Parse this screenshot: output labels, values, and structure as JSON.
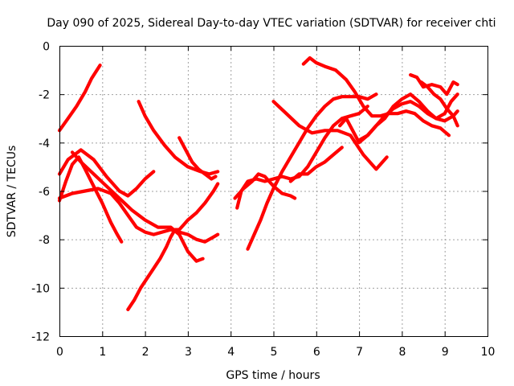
{
  "chart_data": {
    "type": "scatter",
    "title": "Day 090 of 2025, Sidereal Day-to-day VTEC variation (SDTVAR) for receiver chti",
    "xlabel": "GPS time / hours",
    "ylabel": "SDTVAR / TECUs",
    "xlim": [
      0,
      10
    ],
    "ylim": [
      -12,
      0
    ],
    "xticks": [
      "0",
      "1",
      "2",
      "3",
      "4",
      "5",
      "6",
      "7",
      "8",
      "9",
      "10"
    ],
    "yticks": [
      "0",
      "-2",
      "-4",
      "-6",
      "-8",
      "-10",
      "-12"
    ],
    "grid": true,
    "marker": "plus",
    "color": "#ff0000",
    "series": [
      {
        "x": [
          0.0,
          0.2,
          0.4,
          0.6,
          0.75,
          0.95
        ],
        "y": [
          -3.5,
          -3.0,
          -2.5,
          -1.9,
          -1.35,
          -0.8
        ]
      },
      {
        "x": [
          0.0,
          0.15,
          0.3,
          0.45,
          0.6,
          0.8,
          1.0,
          1.2,
          1.35,
          1.45
        ],
        "y": [
          -6.4,
          -5.6,
          -4.9,
          -4.6,
          -5.1,
          -5.8,
          -6.5,
          -7.3,
          -7.8,
          -8.1
        ]
      },
      {
        "x": [
          0.0,
          0.2,
          0.5,
          0.8,
          1.1,
          1.4,
          1.6,
          1.8,
          2.0,
          2.2
        ],
        "y": [
          -5.3,
          -4.7,
          -4.3,
          -4.7,
          -5.4,
          -6.0,
          -6.2,
          -5.9,
          -5.5,
          -5.2
        ]
      },
      {
        "x": [
          0.0,
          0.3,
          0.6,
          0.9,
          1.2,
          1.4,
          1.6,
          1.8,
          2.0,
          2.2,
          2.4,
          2.6,
          2.8,
          3.0,
          3.2,
          3.4,
          3.6,
          3.7
        ],
        "y": [
          -6.3,
          -6.1,
          -6.0,
          -5.9,
          -6.1,
          -6.5,
          -7.0,
          -7.5,
          -7.7,
          -7.8,
          -7.7,
          -7.6,
          -7.7,
          -7.8,
          -8.0,
          -8.1,
          -7.9,
          -7.8
        ]
      },
      {
        "x": [
          0.3,
          0.5,
          0.8,
          1.1,
          1.4,
          1.7,
          2.0,
          2.3,
          2.6,
          2.8,
          3.0,
          3.2,
          3.35
        ],
        "y": [
          -4.4,
          -4.8,
          -5.3,
          -5.8,
          -6.3,
          -6.8,
          -7.2,
          -7.5,
          -7.5,
          -7.8,
          -8.5,
          -8.9,
          -8.8
        ]
      },
      {
        "x": [
          1.6,
          1.75,
          1.9,
          2.05,
          2.2,
          2.35,
          2.5,
          2.6,
          2.7,
          2.8,
          2.9,
          3.0,
          3.2,
          3.4,
          3.6,
          3.7
        ],
        "y": [
          -10.9,
          -10.5,
          -10.0,
          -9.6,
          -9.2,
          -8.8,
          -8.3,
          -7.9,
          -7.6,
          -7.6,
          -7.4,
          -7.2,
          -6.9,
          -6.5,
          -6.0,
          -5.7
        ]
      },
      {
        "x": [
          1.85,
          2.0,
          2.2,
          2.45,
          2.7,
          3.0,
          3.3,
          3.5,
          3.7
        ],
        "y": [
          -2.3,
          -2.9,
          -3.5,
          -4.1,
          -4.6,
          -5.0,
          -5.2,
          -5.3,
          -5.2
        ]
      },
      {
        "x": [
          2.8,
          2.95,
          3.1,
          3.25,
          3.4,
          3.55,
          3.65
        ],
        "y": [
          -3.8,
          -4.3,
          -4.8,
          -5.1,
          -5.3,
          -5.5,
          -5.4
        ]
      },
      {
        "x": [
          4.1,
          4.3,
          4.5,
          4.65,
          4.8,
          5.0,
          5.2,
          5.4,
          5.5
        ],
        "y": [
          -6.3,
          -5.9,
          -5.6,
          -5.3,
          -5.4,
          -5.8,
          -6.1,
          -6.2,
          -6.3
        ]
      },
      {
        "x": [
          4.15,
          4.25,
          4.4,
          4.6,
          4.8,
          5.0,
          5.2,
          5.4,
          5.6,
          5.8,
          6.0,
          6.2,
          6.4,
          6.6,
          6.8,
          7.0,
          7.2
        ],
        "y": [
          -6.7,
          -6.0,
          -5.6,
          -5.5,
          -5.6,
          -5.5,
          -5.4,
          -5.5,
          -5.4,
          -5.0,
          -4.4,
          -3.8,
          -3.3,
          -3.0,
          -2.9,
          -2.8,
          -2.5
        ]
      },
      {
        "x": [
          4.4,
          4.55,
          4.7,
          4.85,
          5.0,
          5.2,
          5.4,
          5.6,
          5.8,
          6.0,
          6.2,
          6.4,
          6.6,
          6.8,
          7.0,
          7.2,
          7.4
        ],
        "y": [
          -8.4,
          -7.8,
          -7.2,
          -6.5,
          -5.9,
          -5.2,
          -4.6,
          -4.0,
          -3.4,
          -2.9,
          -2.5,
          -2.2,
          -2.1,
          -2.1,
          -2.1,
          -2.2,
          -2.0
        ]
      },
      {
        "x": [
          5.0,
          5.3,
          5.6,
          5.9,
          6.2,
          6.5,
          6.8,
          7.1,
          7.4,
          7.65
        ],
        "y": [
          -2.3,
          -2.8,
          -3.3,
          -3.6,
          -3.5,
          -3.5,
          -3.7,
          -4.5,
          -5.1,
          -4.6
        ]
      },
      {
        "x": [
          5.4,
          5.6,
          5.8,
          6.0,
          6.2,
          6.4,
          6.6
        ],
        "y": [
          -5.6,
          -5.3,
          -5.3,
          -5.0,
          -4.8,
          -4.5,
          -4.2
        ]
      },
      {
        "x": [
          5.7,
          5.85,
          6.0,
          6.2,
          6.45,
          6.7,
          6.9,
          7.1,
          7.3,
          7.5,
          7.7,
          7.9,
          8.1,
          8.3,
          8.5,
          8.7,
          8.9,
          9.1
        ],
        "y": [
          -0.75,
          -0.5,
          -0.7,
          -0.85,
          -1.0,
          -1.4,
          -1.9,
          -2.5,
          -2.9,
          -2.9,
          -2.8,
          -2.8,
          -2.7,
          -2.8,
          -3.1,
          -3.3,
          -3.4,
          -3.7
        ]
      },
      {
        "x": [
          6.55,
          6.7,
          6.85,
          7.0,
          7.2,
          7.4,
          7.6,
          7.8,
          8.0,
          8.2,
          8.4,
          8.6,
          8.8,
          9.0,
          9.2,
          9.3
        ],
        "y": [
          -3.3,
          -3.0,
          -3.5,
          -4.0,
          -3.7,
          -3.3,
          -2.9,
          -2.6,
          -2.4,
          -2.3,
          -2.5,
          -2.8,
          -3.0,
          -3.1,
          -2.9,
          -2.7
        ]
      },
      {
        "x": [
          7.0,
          7.2,
          7.4,
          7.6,
          7.8,
          8.0,
          8.2,
          8.4,
          8.6,
          8.8,
          9.0,
          9.15,
          9.3
        ],
        "y": [
          -3.9,
          -3.7,
          -3.3,
          -3.0,
          -2.5,
          -2.2,
          -2.0,
          -2.3,
          -2.7,
          -3.0,
          -2.8,
          -2.3,
          -2.0
        ]
      },
      {
        "x": [
          8.2,
          8.35,
          8.5,
          8.7,
          8.9,
          9.05,
          9.2,
          9.3
        ],
        "y": [
          -1.2,
          -1.3,
          -1.7,
          -1.6,
          -1.7,
          -2.0,
          -1.5,
          -1.6
        ]
      },
      {
        "x": [
          8.45,
          8.6,
          8.75,
          8.9,
          9.05,
          9.2,
          9.3
        ],
        "y": [
          -1.5,
          -1.7,
          -2.0,
          -2.2,
          -2.6,
          -2.9,
          -3.3
        ]
      }
    ]
  }
}
